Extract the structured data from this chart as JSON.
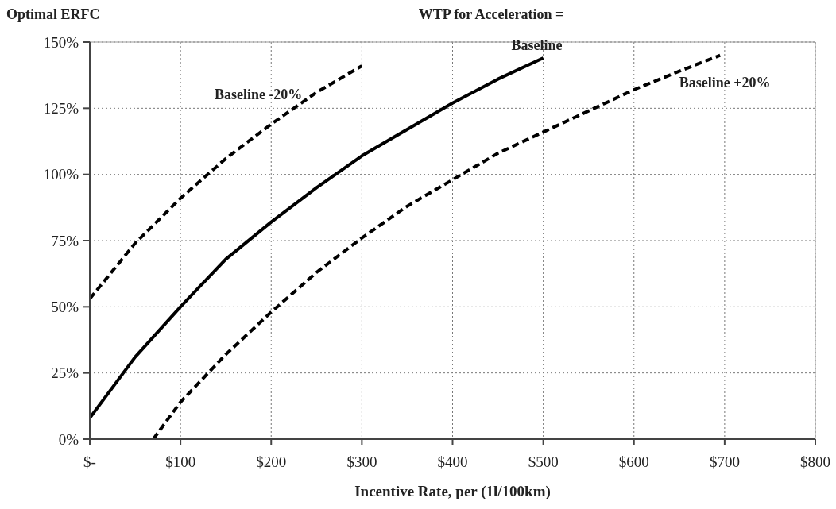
{
  "chart_data": {
    "type": "line",
    "title": "WTP for Acceleration =",
    "ylabel": "Optimal ERFC",
    "xlabel": "Incentive Rate, per (1l/100km)",
    "xlim": [
      0,
      800
    ],
    "xticks": [
      {
        "value": 0,
        "label": "$-"
      },
      {
        "value": 100,
        "label": "$100"
      },
      {
        "value": 200,
        "label": "$200"
      },
      {
        "value": 300,
        "label": "$300"
      },
      {
        "value": 400,
        "label": "$400"
      },
      {
        "value": 500,
        "label": "$500"
      },
      {
        "value": 600,
        "label": "$600"
      },
      {
        "value": 700,
        "label": "$700"
      },
      {
        "value": 800,
        "label": "$800"
      }
    ],
    "ylim": [
      0,
      150
    ],
    "yticks": [
      {
        "value": 0,
        "label": "0%"
      },
      {
        "value": 25,
        "label": "25%"
      },
      {
        "value": 50,
        "label": "50%"
      },
      {
        "value": 75,
        "label": "75%"
      },
      {
        "value": 100,
        "label": "100%"
      },
      {
        "value": 125,
        "label": "125%"
      },
      {
        "value": 150,
        "label": "150%"
      }
    ],
    "grid": true,
    "legend": false,
    "marker": "none",
    "series": [
      {
        "name": "Baseline -20%",
        "color": "#000000",
        "line_style": "dashed",
        "x": [
          0,
          50,
          100,
          150,
          200,
          250,
          300
        ],
        "values": [
          53,
          74,
          91,
          106,
          119,
          131,
          141
        ]
      },
      {
        "name": "Baseline",
        "color": "#000000",
        "line_style": "solid",
        "x": [
          0,
          50,
          100,
          150,
          200,
          250,
          300,
          350,
          400,
          450,
          500
        ],
        "values": [
          8,
          31,
          50,
          68,
          82,
          95,
          107,
          117,
          127,
          136,
          144
        ]
      },
      {
        "name": "Baseline +20%",
        "color": "#000000",
        "line_style": "dashed",
        "x": [
          70,
          100,
          150,
          200,
          250,
          300,
          350,
          400,
          450,
          500,
          550,
          600,
          650,
          695
        ],
        "values": [
          0,
          14,
          32,
          48,
          63,
          76,
          88,
          98,
          108,
          116,
          124,
          132,
          139,
          145
        ]
      }
    ]
  }
}
